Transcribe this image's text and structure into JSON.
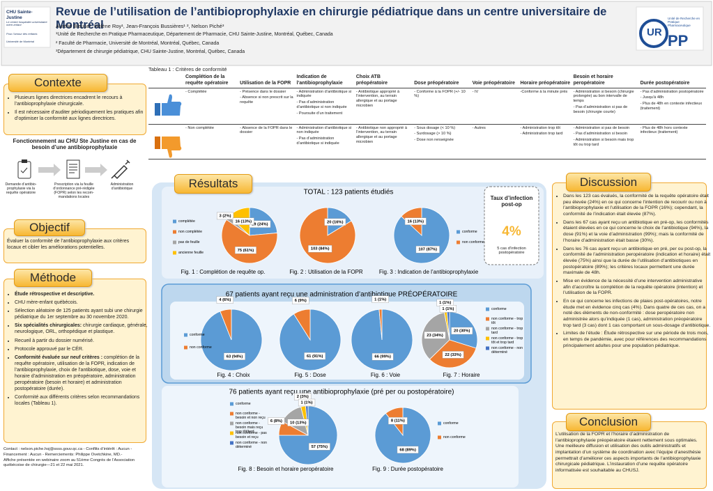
{
  "header": {
    "title": "Revue de l’utilisation de l’antibioprophylaxie en chirurgie pédiatrique dans un centre universitaire de Montréal",
    "authors": "Aurélie Bleuse¹, Hélène Roy¹, Jean-François Bussières¹ ², Nelson Piché³",
    "affiliations": [
      "¹Unité de Recherche en Pratique Pharmaceutique, Département de Pharmacie, CHU Sainte-Justine, Montréal, Québec, Canada",
      "² Faculté de Pharmacie, Université de Montréal, Montréal, Québec, Canada",
      "³Département de chirurgie pédiatrique, CHU Sainte-Justine, Montréal, Québec, Canada"
    ],
    "left_logo": [
      "CHU Sainte-Justine",
      "Le centre hospitalier universitaire mère-enfant",
      "Pour l’amour des enfants",
      "Université de Montréal"
    ],
    "right_logo": [
      "UR",
      "PP",
      "Unité de Recherche en Pratique Pharmaceutique"
    ]
  },
  "contexte": {
    "title": "Contexte",
    "bullets": [
      "Plusieurs lignes directrices encadrent le recours à l’antibioprophylaxie chirurgicale.",
      "Il est nécessaire d’auditer périodiquement les pratiques afin d’optimiser la conformité aux lignes directrices."
    ],
    "diagram_title": "Fonctionnement au CHU Ste Justine en cas de besoin d’une antibioprophylaxie",
    "steps": [
      "Demande d’antibio-prophylaxie via la requête opératoire",
      "Prescription via la feuille d’ordonnance pré-rédigée (FOPR) selon les recom-mandations locales",
      "Administration d’antibiotique"
    ]
  },
  "objectif": {
    "title": "Objectif",
    "text": "Évaluer la conformité de l’antibioprophylaxie aux critères locaux et cibler les améliorations potentielles."
  },
  "methode": {
    "title": "Méthode",
    "items": [
      {
        "bold": "Étude rétrospective et descriptive."
      },
      "CHU mère-enfant québécois.",
      "Sélection aléatoire de 125 patients ayant subi une chirurgie pédiatrique du 1er septembre au 30 novembre 2020.",
      {
        "bold": "Six spécialités chirurgicales:",
        "text": " chirurgie cardiaque, générale, neurologique, ORL, orthopédique et plastique."
      },
      "Recueil à partir du dossier numérisé.",
      "Protocole approuvé par le CÉR.",
      {
        "bold": "Conformité évaluée sur neuf critères :",
        "text": " complétion de la requête opératoire, utilisation de la FOPR, indication de l’antibioprophylaxie, choix de l’antibiotique, dose, voie et horaire d’administration en préopératoire, administration peropératoire (besoin et horaire) et administration postopératoire (durée)."
      },
      "Conformité aux différents critères selon recommandations locales (Tableau 1)."
    ]
  },
  "footer": [
    "Contact : nelson.piche.hsj@ssss.gouv.qc.ca - Conflits d’intérêt : Aucun - Financement : Aucun - Remerciements: Philippe Ovetchkine, MD.-",
    "Affiche présentée en webinaire zoom au 51ème Congrès de l’Association québécoise de chirurgie—21 et 22 mai 2021."
  ],
  "table": {
    "title": "Tableau 1 : Critères de conformité",
    "headers": [
      "Complétion de la requête opératoire",
      "Utilisation de la FOPR",
      "Indication de l’antibioprophylaxie",
      "Choix ATB préopératoire",
      "Dose préopératoire",
      "Voie préopératoire",
      "Horaire préopératoire",
      "Besoin et horaire peropératoire",
      "Durée postopératoire"
    ],
    "rows": [
      [
        [
          "- Complétée"
        ],
        [
          "- Présence dans le dossier",
          "- Absence si non prescrit sur la requête"
        ],
        [
          "- Administration d’antibiotique si indiquée",
          "- Pas d’administration d’antibiotique si non indiquée",
          "- Poursuite d’un traitement"
        ],
        [
          "- Antibiotique approprié à l’intervention, au terrain allergique et au portage microbien"
        ],
        [
          "- Conforme à la FOPR (+/- 10 %)"
        ],
        [
          "- IV"
        ],
        [
          "-Conforme à la minute près"
        ],
        [
          "- Administration si besoin (chirurgie prolongée) au bon intervalle de temps",
          "- Pas d’administration si pas de besoin (chirurgie courte)"
        ],
        [
          "- Pas d’administration postopératoire",
          "- Jusqu’à 48h",
          "- Plus de 48h en contexte infectieux (traitement)"
        ]
      ],
      [
        [
          "- Non complétée"
        ],
        [
          "- Absence de la FOPR dans le dossier"
        ],
        [
          "- Administration d’antibiotique si non indiquée",
          "- Pas d’administration d’antibiotique si indiquée"
        ],
        [
          "- Antibiotique non approprié à l’intervention, au terrain allergique et au portage microbien"
        ],
        [
          "- Sous dosage (< 10 %)",
          "- Surdosage (> 10 %)",
          "- Dose non renseignée"
        ],
        [
          "- Autres"
        ],
        [
          "- Administration trop tôt",
          "- Administration trop tard"
        ],
        [
          "- Administration si pas de besoin",
          "- Pas d’administration si besoin",
          "- Administration si besoin mais trop tôt ou trop tard"
        ],
        [
          "- Plus de 48h hors contexte infectieux (traitement)"
        ]
      ]
    ]
  },
  "resultats": {
    "title": "Résultats",
    "total": "TOTAL : 123 patients étudiés",
    "preop_title": "67 patients ayant reçu une administration d’antibiotique PRÉOPÉRATOIRE",
    "anti_title": "76 patients ayant reçu une antibioprophylaxie (pré per ou postopératoire)",
    "infection": [
      "Taux d’infection post-op",
      "4%",
      "5 cas d’infection postopératoire"
    ],
    "figures": [
      {
        "caption": "Fig. 1 : Complétion de requête op.",
        "categories": [
          "complétée",
          "non complétée",
          "pas de feuille",
          "ancienne feuille"
        ],
        "values": [
          29,
          75,
          3,
          16
        ],
        "value_labels": [
          "29 (24%)",
          "75 (61%)",
          "3 (2%)",
          "16 (13%)"
        ],
        "colors": [
          "#5b9bd5",
          "#ed7d31",
          "#a5a5a5",
          "#ffc000"
        ]
      },
      {
        "caption": "Fig. 2 : Utilisation de la FOPR",
        "values": [
          20,
          103
        ],
        "value_labels": [
          "20 (16%)",
          "103 (84%)"
        ],
        "colors": [
          "#5b9bd5",
          "#ed7d31"
        ]
      },
      {
        "caption": "Fig. 3 : Indication de l’antibioprophylaxie",
        "categories": [
          "conforme",
          "non conforme"
        ],
        "values": [
          107,
          16
        ],
        "value_labels": [
          "107 (87%)",
          "16 (13%)"
        ],
        "colors": [
          "#5b9bd5",
          "#ed7d31"
        ]
      },
      {
        "caption": "Fig. 4 : Choix",
        "categories": [
          "conforme",
          "non conforme"
        ],
        "values": [
          63,
          4
        ],
        "value_labels": [
          "63 (94%)",
          "4 (6%)"
        ],
        "colors": [
          "#5b9bd5",
          "#ed7d31"
        ]
      },
      {
        "caption": "Fig. 5 : Dose",
        "values": [
          61,
          6
        ],
        "value_labels": [
          "61 (91%)",
          "6 (9%)"
        ],
        "colors": [
          "#5b9bd5",
          "#ed7d31"
        ]
      },
      {
        "caption": "Fig. 6 : Voie",
        "values": [
          66,
          1
        ],
        "value_labels": [
          "66 (99%)",
          "1 (1%)"
        ],
        "colors": [
          "#5b9bd5",
          "#ed7d31"
        ]
      },
      {
        "caption": "Fig. 7 : Horaire",
        "categories": [
          "conforme",
          "non conforme - trop tôt",
          "non conforme - trop tard",
          "non conforme - trop tôt et trop tard",
          "non conforme - non déterminé"
        ],
        "values": [
          20,
          22,
          23,
          1,
          1
        ],
        "value_labels": [
          "20 (30%)",
          "22 (33%)",
          "23 (34%)",
          "1 (1%)",
          "1 (1%)"
        ],
        "colors": [
          "#5b9bd5",
          "#ed7d31",
          "#a5a5a5",
          "#ffc000",
          "#4472c4"
        ]
      },
      {
        "caption": "Fig. 8 : Besoin et horaire peropératoire",
        "categories": [
          "conforme",
          "non conforme - besoin et non reçu",
          "non conforme - besoin mais reçu trop tôt/tard",
          "non conforme - pas besoin et reçu",
          "non conforme - non déterminé"
        ],
        "values": [
          57,
          6,
          10,
          2,
          1
        ],
        "value_labels": [
          "57 (75%)",
          "6 (8%)",
          "10 (13%)",
          "2 (3%)",
          "1 (1%)"
        ],
        "colors": [
          "#5b9bd5",
          "#ed7d31",
          "#a5a5a5",
          "#ffc000",
          "#4472c4"
        ]
      },
      {
        "caption": "Fig. 9 : Durée postopératoire",
        "categories": [
          "conforme",
          "non conforme"
        ],
        "values": [
          68,
          8
        ],
        "value_labels": [
          "68 (89%)",
          "8 (11%)"
        ],
        "colors": [
          "#5b9bd5",
          "#ed7d31"
        ]
      }
    ]
  },
  "discussion": {
    "title": "Discussion",
    "bullets": [
      "Dans les 123 cas évalués, la conformité de la requête opératoire était peu élevée (24%) en ce qui concerne l’intention de recourir ou non à l’antibioprophylaxie et l’utilisation de la FOPR (16%); cependant, la conformité de l’indication était élevée (87%).",
      "Dans les 67 cas ayant reçu un antibiotique en pré-op, les conformités étaient élevées en ce qui concerne le choix de l’antibiotique (94%), la dose (91%) et la voie d’administration (99%); mais la conformité de l’horaire d’administration était basse (30%).",
      "Dans les 76 cas ayant reçu un antibiotique en pré, per ou post-op, la conformité de l’administration peropératoire (indication et horaire) était élevée (75%) ainsi que la durée de l’utilisation d’antibiotiques en postopératoire (89%); les critères locaux permettent une durée maximale de 48h.",
      "Mise en évidence de la nécessité d’une intervention administrative afin d’accroître la complétion de la requête opératoire (intention) et l’utilisation de la FOPR.",
      "En ce qui concerne les infections de plaies post-opératoires, notre étude met en évidence cinq cas (4%). Dans quatre de ces cas, on a noté des éléments de non-conformité : dose peropératoire non administrée alors qu’indiquée (1 cas), administration préopératoire trop tard (3 cas) dont 1 cas comportant un sous-dosage d’antibiotique.",
      "Limites de l’étude : Étude rétrospective sur une période de trois mois, en temps de pandémie, avec pour références des recommandations principalement adultes pour une population pédiatrique."
    ]
  },
  "conclusion": {
    "title": "Conclusion",
    "text": "L’utilisation de la FOPR et l’horaire d’administration de l’antibioprophylaxie préopératoire étaient nettement sous optimales. Une meilleure diffusion et utilisation des outils administratifs et implantation d’un système de coordination avec l’équipe d’anesthésie permettrait d’améliorer ces aspects importants de l’antibioprophylaxie chirurgicale pédiatrique. L’instauration d’une requête opératoire informatisée est souhaitable au CHUSJ."
  }
}
